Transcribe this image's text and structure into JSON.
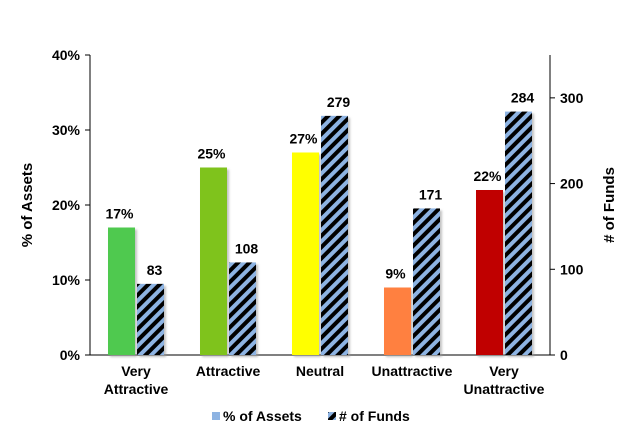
{
  "chart_data": {
    "type": "bar",
    "categories": [
      [
        "Very",
        "Attractive"
      ],
      [
        "Attractive"
      ],
      [
        "Neutral"
      ],
      [
        "Unattractive"
      ],
      [
        "Very",
        "Unattractive"
      ]
    ],
    "series": [
      {
        "name": "% of Assets",
        "axis": "left",
        "values": [
          17,
          25,
          27,
          9,
          22
        ],
        "labels": [
          "17%",
          "25%",
          "27%",
          "9%",
          "22%"
        ],
        "colors": [
          "#4fc94f",
          "#7fc31c",
          "#ffff00",
          "#ff8040",
          "#c00000"
        ]
      },
      {
        "name": "# of Funds",
        "axis": "right",
        "values": [
          83,
          108,
          279,
          171,
          284
        ],
        "labels": [
          "83",
          "108",
          "279",
          "171",
          "284"
        ],
        "pattern": "black and light-blue diagonal stripes"
      }
    ],
    "ylabel": "% of Assets",
    "y2label": "# of Funds",
    "ylim": [
      0,
      40
    ],
    "y2lim": [
      0,
      350
    ],
    "yticks": [
      "0%",
      "10%",
      "20%",
      "30%",
      "40%"
    ],
    "yticks_values": [
      0,
      10,
      20,
      30,
      40
    ],
    "y2ticks": [
      "0",
      "100",
      "200",
      "300"
    ],
    "y2ticks_values": [
      0,
      100,
      200,
      300
    ],
    "legend": {
      "position": "bottom",
      "items": [
        "% of Assets",
        "# of Funds"
      ]
    },
    "grid": false
  }
}
